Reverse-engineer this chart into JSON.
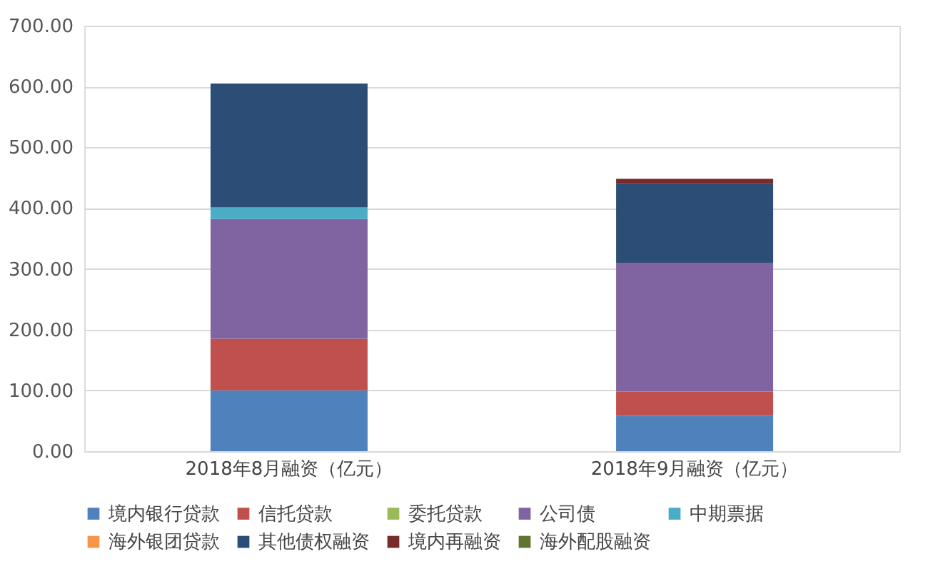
{
  "chart_data": {
    "type": "bar",
    "stacked": true,
    "categories": [
      "2018年8月融资（亿元）",
      "2018年9月融资（亿元）"
    ],
    "series": [
      {
        "name": "境内银行贷款",
        "color": "#4f81bd",
        "values": [
          100,
          58
        ]
      },
      {
        "name": "信托贷款",
        "color": "#c0504d",
        "values": [
          85,
          40
        ]
      },
      {
        "name": "委托贷款",
        "color": "#9bbb59",
        "values": [
          0,
          0
        ]
      },
      {
        "name": "公司债",
        "color": "#8064a2",
        "values": [
          197,
          212
        ]
      },
      {
        "name": "中期票据",
        "color": "#4bacc6",
        "values": [
          19,
          0
        ]
      },
      {
        "name": "海外银团贷款",
        "color": "#f79646",
        "values": [
          0,
          0
        ]
      },
      {
        "name": "其他债权融资",
        "color": "#2c4d75",
        "values": [
          204,
          130
        ]
      },
      {
        "name": "境内再融资",
        "color": "#772c2a",
        "values": [
          0,
          8
        ]
      },
      {
        "name": "海外配股融资",
        "color": "#5f7530",
        "values": [
          0,
          0
        ]
      }
    ],
    "ylim": [
      0,
      700
    ],
    "yticks": [
      {
        "value": 0,
        "label": "0.00"
      },
      {
        "value": 100,
        "label": "100.00"
      },
      {
        "value": 200,
        "label": "200.00"
      },
      {
        "value": 300,
        "label": "300.00"
      },
      {
        "value": 400,
        "label": "400.00"
      },
      {
        "value": 500,
        "label": "500.00"
      },
      {
        "value": 600,
        "label": "600.00"
      },
      {
        "value": 700,
        "label": "700.00"
      }
    ],
    "grid": "y",
    "legend": "bottom"
  }
}
